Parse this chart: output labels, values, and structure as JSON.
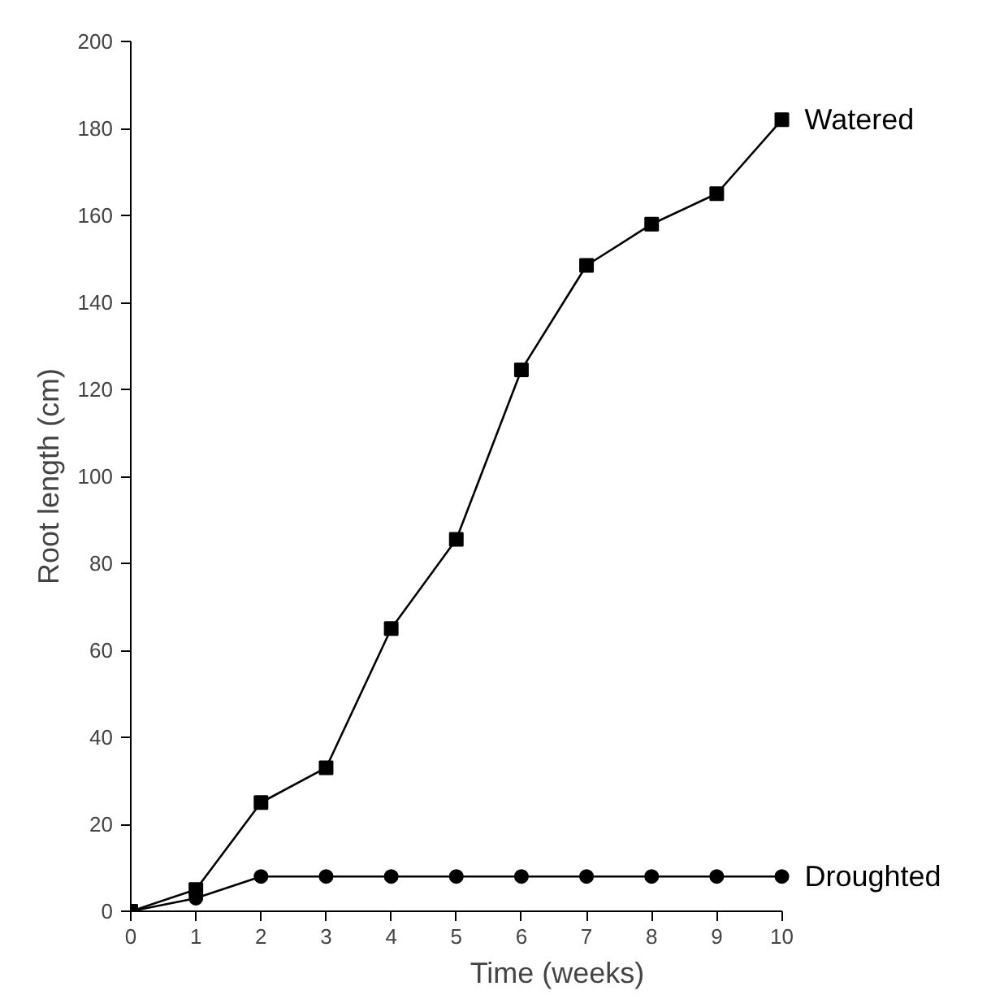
{
  "chart_data": {
    "type": "line",
    "xlabel": "Time (weeks)",
    "ylabel": "Root length (cm)",
    "x": [
      0,
      1,
      2,
      3,
      4,
      5,
      6,
      7,
      8,
      9,
      10
    ],
    "xlim": [
      0,
      10
    ],
    "xticks": [
      0,
      1,
      2,
      3,
      4,
      5,
      6,
      7,
      8,
      9,
      10
    ],
    "ylim": [
      0,
      200
    ],
    "yticks": [
      0,
      20,
      40,
      60,
      80,
      100,
      120,
      140,
      160,
      180,
      200
    ],
    "grid": false,
    "legend": false,
    "line_style": "solid",
    "series": [
      {
        "name": "Watered",
        "color": "#000000",
        "marker": "square",
        "values": [
          0,
          5,
          25,
          33,
          65,
          85.5,
          124.5,
          148.5,
          158,
          165,
          182
        ]
      },
      {
        "name": "Droughted",
        "color": "#000000",
        "marker": "circle",
        "values": [
          0,
          3,
          8,
          8,
          8,
          8,
          8,
          8,
          8,
          8,
          8
        ]
      }
    ]
  }
}
